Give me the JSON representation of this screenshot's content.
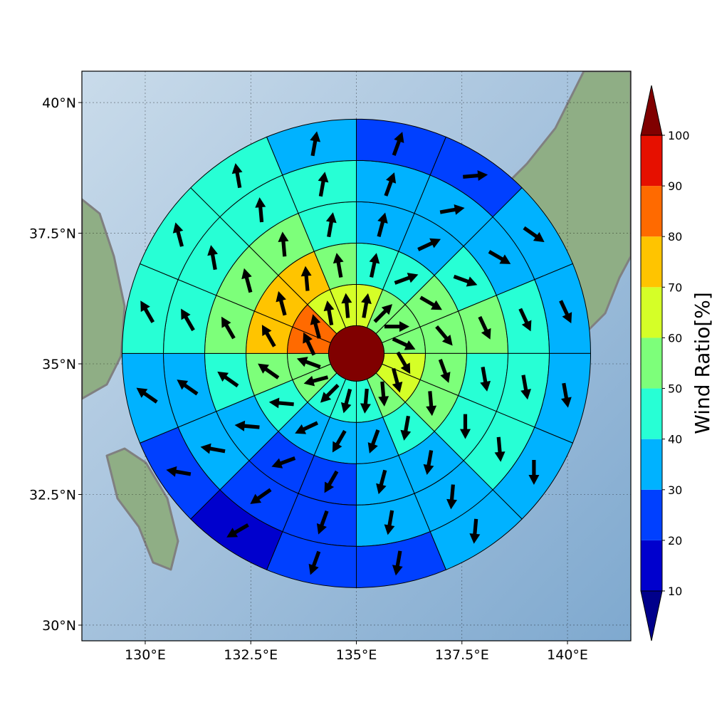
{
  "chart_data": {
    "type": "heatmap",
    "subtype": "polar sector map with wind-direction arrows",
    "map": {
      "lon_range": [
        128.5,
        141.5
      ],
      "lat_range": [
        29.7,
        40.6
      ],
      "x_ticks": [
        130,
        132.5,
        135,
        137.5,
        140
      ],
      "x_tick_labels": [
        "130°E",
        "132.5°E",
        "135°E",
        "137.5°E",
        "140°E"
      ],
      "y_ticks": [
        30,
        32.5,
        35,
        37.5,
        40
      ],
      "y_tick_labels": [
        "30°N",
        "32.5°N",
        "35°N",
        "37.5°N",
        "40°N"
      ],
      "grid": true,
      "background": "shaded relief with ocean gradient",
      "land_color": "#8fae85",
      "coastline_color": "#808080"
    },
    "colorbar": {
      "label": "Wind Ratio[%]",
      "ticks": [
        10,
        20,
        30,
        40,
        50,
        60,
        70,
        80,
        90,
        100
      ],
      "tick_labels": [
        "10",
        "20",
        "30",
        "40",
        "50",
        "60",
        "70",
        "80",
        "90",
        "100"
      ],
      "colors": [
        "#0000cd",
        "#0040ff",
        "#00b2ff",
        "#27ffd5",
        "#7dff7a",
        "#d5ff27",
        "#ffc400",
        "#ff6a00",
        "#e61000"
      ],
      "under_color": "#00008b",
      "over_color": "#800000",
      "extend": "both",
      "position": "right"
    },
    "sectors": 16,
    "sector_width_deg": 22.5,
    "first_sector_center_bearing_deg": 11.25,
    "center": {
      "lon": 135,
      "lat": 35.2,
      "value": 100
    },
    "rings": [
      {
        "ring": 1,
        "values": [
          60,
          50,
          50,
          50,
          60,
          60,
          50,
          40,
          40,
          40,
          50,
          50,
          80,
          80,
          60,
          60
        ],
        "arrow_direction_deg": [
          10,
          45,
          90,
          115,
          150,
          165,
          175,
          185,
          195,
          225,
          255,
          290,
          335,
          345,
          350,
          355
        ]
      },
      {
        "ring": 2,
        "values": [
          40,
          40,
          50,
          50,
          50,
          50,
          40,
          30,
          30,
          30,
          40,
          50,
          70,
          70,
          70,
          50
        ],
        "arrow_direction_deg": [
          12,
          70,
          120,
          140,
          160,
          175,
          190,
          200,
          210,
          245,
          275,
          305,
          330,
          345,
          355,
          350
        ]
      },
      {
        "ring": 3,
        "values": [
          30,
          30,
          40,
          50,
          40,
          40,
          30,
          30,
          20,
          20,
          30,
          40,
          50,
          50,
          50,
          40
        ],
        "arrow_direction_deg": [
          15,
          65,
          110,
          155,
          170,
          180,
          190,
          195,
          210,
          250,
          275,
          305,
          330,
          345,
          355,
          10
        ]
      },
      {
        "ring": 4,
        "values": [
          30,
          30,
          30,
          40,
          40,
          40,
          30,
          30,
          20,
          20,
          30,
          30,
          40,
          40,
          40,
          40
        ],
        "arrow_direction_deg": [
          20,
          80,
          120,
          155,
          170,
          175,
          185,
          190,
          200,
          235,
          280,
          305,
          330,
          350,
          355,
          10
        ]
      },
      {
        "ring": 5,
        "values": [
          20,
          20,
          30,
          30,
          30,
          30,
          30,
          20,
          20,
          10,
          20,
          30,
          40,
          40,
          40,
          30
        ],
        "arrow_direction_deg": [
          20,
          85,
          125,
          155,
          170,
          180,
          185,
          190,
          200,
          240,
          280,
          305,
          330,
          345,
          350,
          10
        ]
      }
    ]
  }
}
